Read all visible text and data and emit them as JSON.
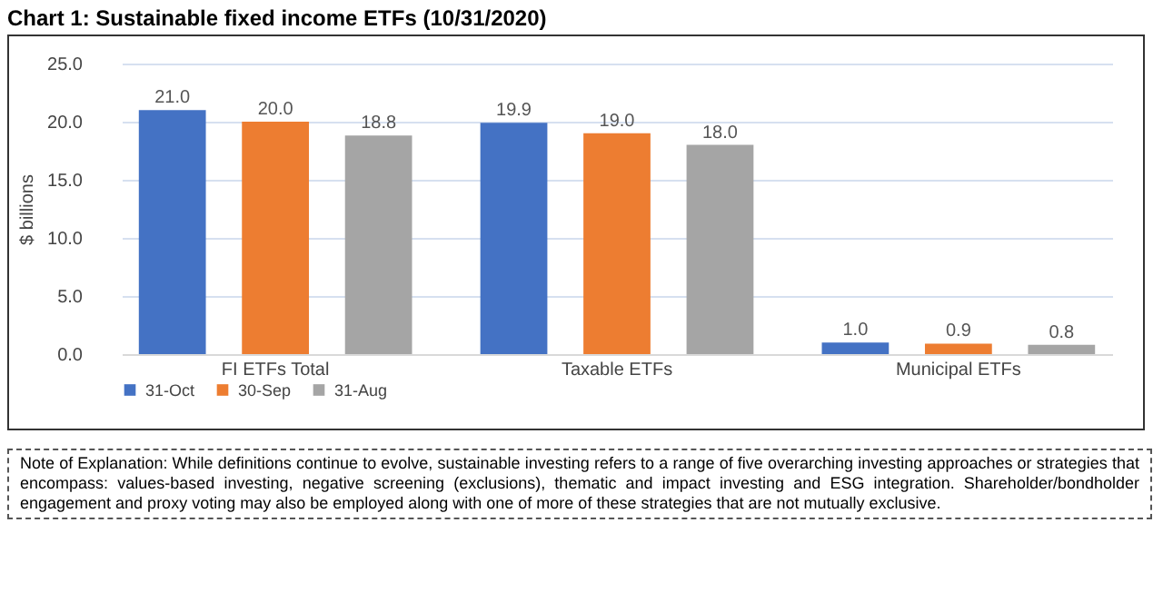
{
  "chart_data": {
    "type": "bar",
    "title": "Chart 1:  Sustainable fixed income ETFs (10/31/2020)",
    "ylabel": "$ billions",
    "categories": [
      "FI ETFs Total",
      "Taxable ETFs",
      "Municipal ETFs"
    ],
    "series": [
      {
        "name": "31-Oct",
        "color": "#4472c4",
        "values": [
          21.0,
          19.9,
          1.0
        ],
        "value_labels": [
          "21.0",
          "19.9",
          "1.0"
        ]
      },
      {
        "name": "30-Sep",
        "color": "#ed7d31",
        "values": [
          20.0,
          19.0,
          0.9
        ],
        "value_labels": [
          "20.0",
          "19.0",
          "0.9"
        ]
      },
      {
        "name": "31-Aug",
        "color": "#a5a5a5",
        "values": [
          18.8,
          18.0,
          0.8
        ],
        "value_labels": [
          "18.8",
          "18.0",
          "0.8"
        ]
      }
    ],
    "ylim": [
      0,
      25
    ],
    "yticks": [
      {
        "value": 0,
        "label": "0.0"
      },
      {
        "value": 5,
        "label": "5.0"
      },
      {
        "value": 10,
        "label": "10.0"
      },
      {
        "value": 15,
        "label": "15.0"
      },
      {
        "value": 20,
        "label": "20.0"
      },
      {
        "value": 25,
        "label": "25.0"
      }
    ],
    "grid": "y",
    "legend": "bottom left",
    "annotations": [
      "Note of Explanation:  While definitions continue to evolve, sustainable investing refers to a range of five overarching investing approaches or strategies that encompass:  values-based investing, negative screening (exclusions), thematic and impact investing and ESG integration.  Shareholder/bondholder engagement and proxy voting may also be employed along with one of more of these strategies that are not mutually exclusive."
    ]
  }
}
